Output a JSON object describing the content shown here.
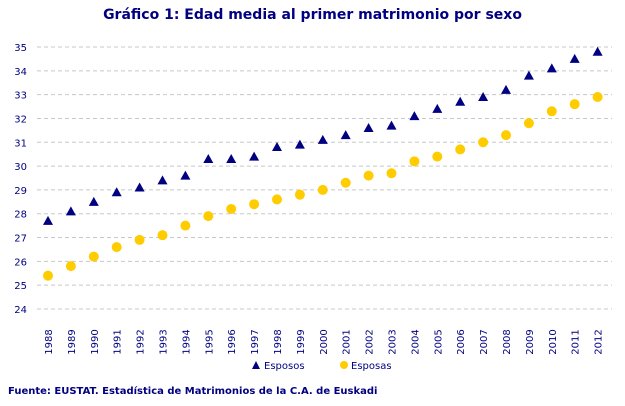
{
  "chart_data": {
    "type": "scatter",
    "title": "Gráfico 1: Edad media al primer matrimonio por sexo",
    "xlabel": "",
    "ylabel": "",
    "ylim": [
      24,
      35
    ],
    "yticks": [
      24,
      25,
      26,
      27,
      28,
      29,
      30,
      31,
      32,
      33,
      34,
      35
    ],
    "grid": true,
    "legend": "bottom",
    "categories": [
      "1988",
      "1989",
      "1990",
      "1991",
      "1992",
      "1993",
      "1994",
      "1995",
      "1996",
      "1997",
      "1998",
      "1999",
      "2000",
      "2001",
      "2002",
      "2003",
      "2004",
      "2005",
      "2006",
      "2007",
      "2008",
      "2009",
      "2010",
      "2011",
      "2012"
    ],
    "series": [
      {
        "name": "Esposos",
        "marker": "triangle",
        "color": "#000080",
        "values": [
          27.7,
          28.1,
          28.5,
          28.9,
          29.1,
          29.4,
          29.6,
          30.3,
          30.3,
          30.4,
          30.8,
          30.9,
          31.1,
          31.3,
          31.6,
          31.7,
          32.1,
          32.4,
          32.7,
          32.9,
          33.2,
          33.8,
          34.1,
          34.5,
          34.8
        ]
      },
      {
        "name": "Esposas",
        "marker": "circle",
        "color": "#FFCC00",
        "values": [
          25.4,
          25.8,
          26.2,
          26.6,
          26.9,
          27.1,
          27.5,
          27.9,
          28.2,
          28.4,
          28.6,
          28.8,
          29.0,
          29.3,
          29.6,
          29.7,
          30.2,
          30.4,
          30.7,
          31.0,
          31.3,
          31.8,
          32.3,
          32.6,
          32.9
        ]
      }
    ]
  },
  "source": "Fuente: EUSTAT. Estadística de Matrimonios de la C.A. de Euskadi"
}
